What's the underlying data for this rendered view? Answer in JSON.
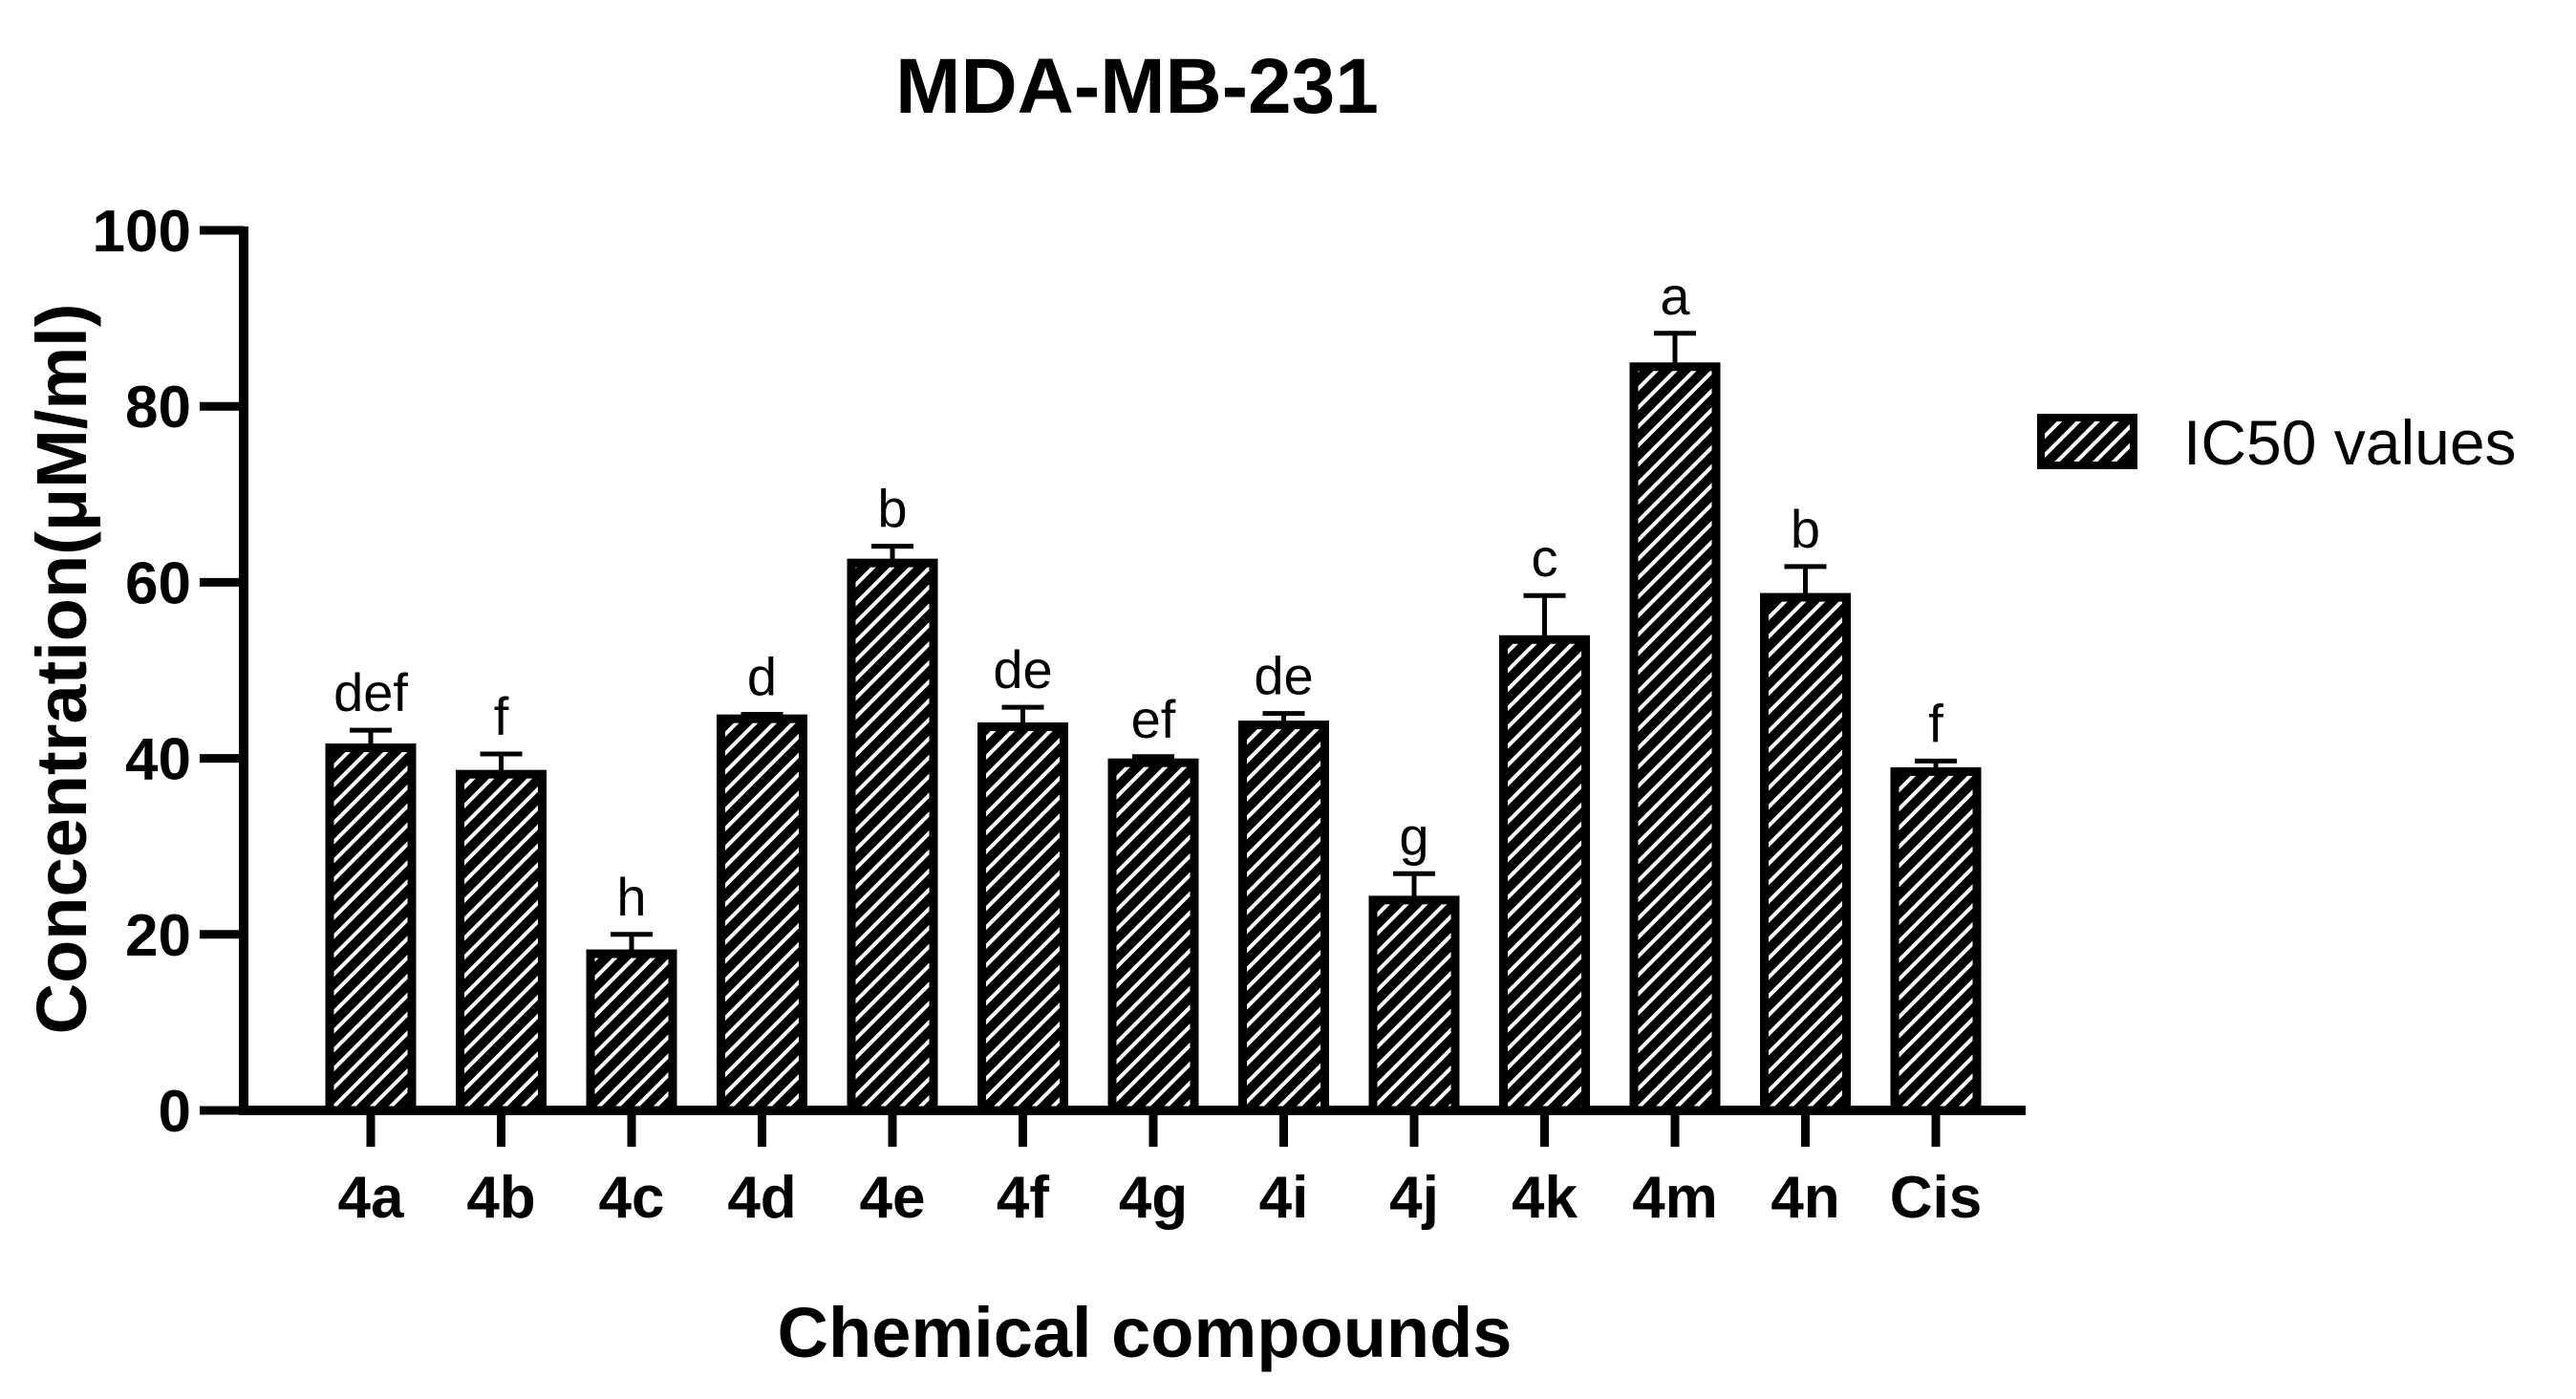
{
  "chart_data": {
    "type": "bar",
    "title": "MDA-MB-231",
    "xlabel": "Chemical compounds",
    "ylabel": "Concentration(μM/ml)",
    "ylim": [
      0,
      100
    ],
    "yticks": [
      0,
      20,
      40,
      60,
      80,
      100
    ],
    "categories": [
      "4a",
      "4b",
      "4c",
      "4d",
      "4e",
      "4f",
      "4g",
      "4i",
      "4j",
      "4k",
      "4m",
      "4n",
      "Cis"
    ],
    "series": [
      {
        "name": "IC50 values",
        "values": [
          41.2,
          38.2,
          17.8,
          44.5,
          62.2,
          43.6,
          39.5,
          43.8,
          23.9,
          53.5,
          84.5,
          58.3,
          38.5
        ],
        "errors": [
          2.0,
          2.3,
          2.2,
          0.5,
          1.9,
          2.2,
          0.7,
          1.3,
          3.0,
          5.0,
          3.8,
          3.5,
          1.2
        ],
        "significance": [
          "def",
          "f",
          "h",
          "d",
          "b",
          "de",
          "ef",
          "de",
          "g",
          "c",
          "a",
          "b",
          "f"
        ]
      }
    ],
    "legend_position": "right",
    "fill_pattern": "diagonal-hatch",
    "colors": {
      "bar_fill": "#000000",
      "hatch": "#ffffff",
      "axis": "#000000"
    }
  }
}
